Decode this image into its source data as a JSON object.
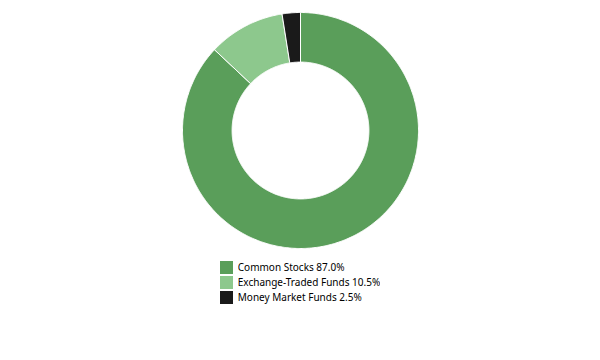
{
  "chart_data": {
    "type": "pie",
    "categories": [
      "Common Stocks 87.0%",
      "Exchange-Traded Funds 10.5%",
      "Money Market Funds 2.5%"
    ],
    "values": [
      87.0,
      10.5,
      2.5
    ],
    "colors": [
      "#5a9e5a",
      "#8dc88d",
      "#1a1a1a"
    ],
    "legend": "bottom"
  }
}
